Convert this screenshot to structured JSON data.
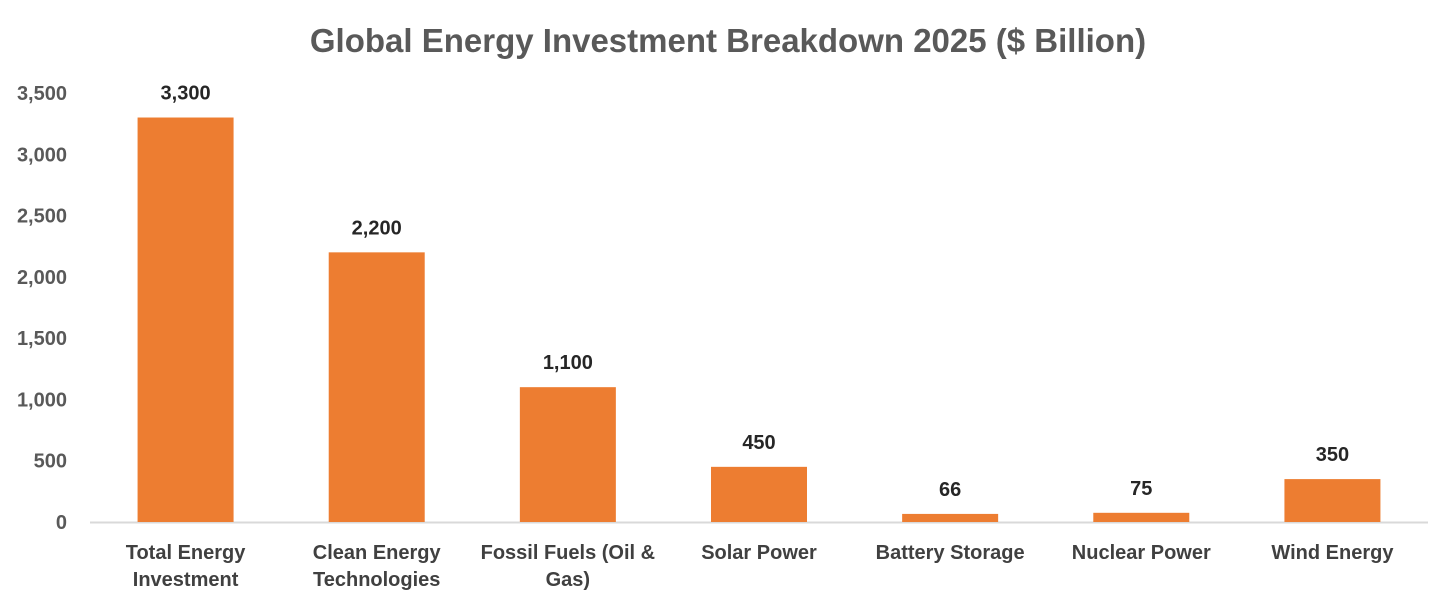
{
  "chart_data": {
    "type": "bar",
    "title": "Global Energy Investment Breakdown 2025 ($ Billion)",
    "xlabel": "",
    "ylabel": "",
    "categories": [
      [
        "Total Energy",
        "Investment"
      ],
      [
        "Clean Energy",
        "Technologies"
      ],
      [
        "Fossil Fuels (Oil &",
        "Gas)"
      ],
      [
        "Solar Power"
      ],
      [
        "Battery Storage"
      ],
      [
        "Nuclear Power"
      ],
      [
        "Wind Energy"
      ]
    ],
    "values": [
      3300,
      2200,
      1100,
      450,
      66,
      75,
      350
    ],
    "value_labels": [
      "3,300",
      "2,200",
      "1,100",
      "450",
      "66",
      "75",
      "350"
    ],
    "ylim": [
      0,
      3500
    ],
    "yticks": [
      0,
      500,
      1000,
      1500,
      2000,
      2500,
      3000,
      3500
    ],
    "ytick_labels": [
      "0",
      "500",
      "1,000",
      "1,500",
      "2,000",
      "2,500",
      "3,000",
      "3,500"
    ],
    "grid": false,
    "legend": "none",
    "bar_color": "#ED7D31",
    "axis_color": "#D9D9D9"
  }
}
